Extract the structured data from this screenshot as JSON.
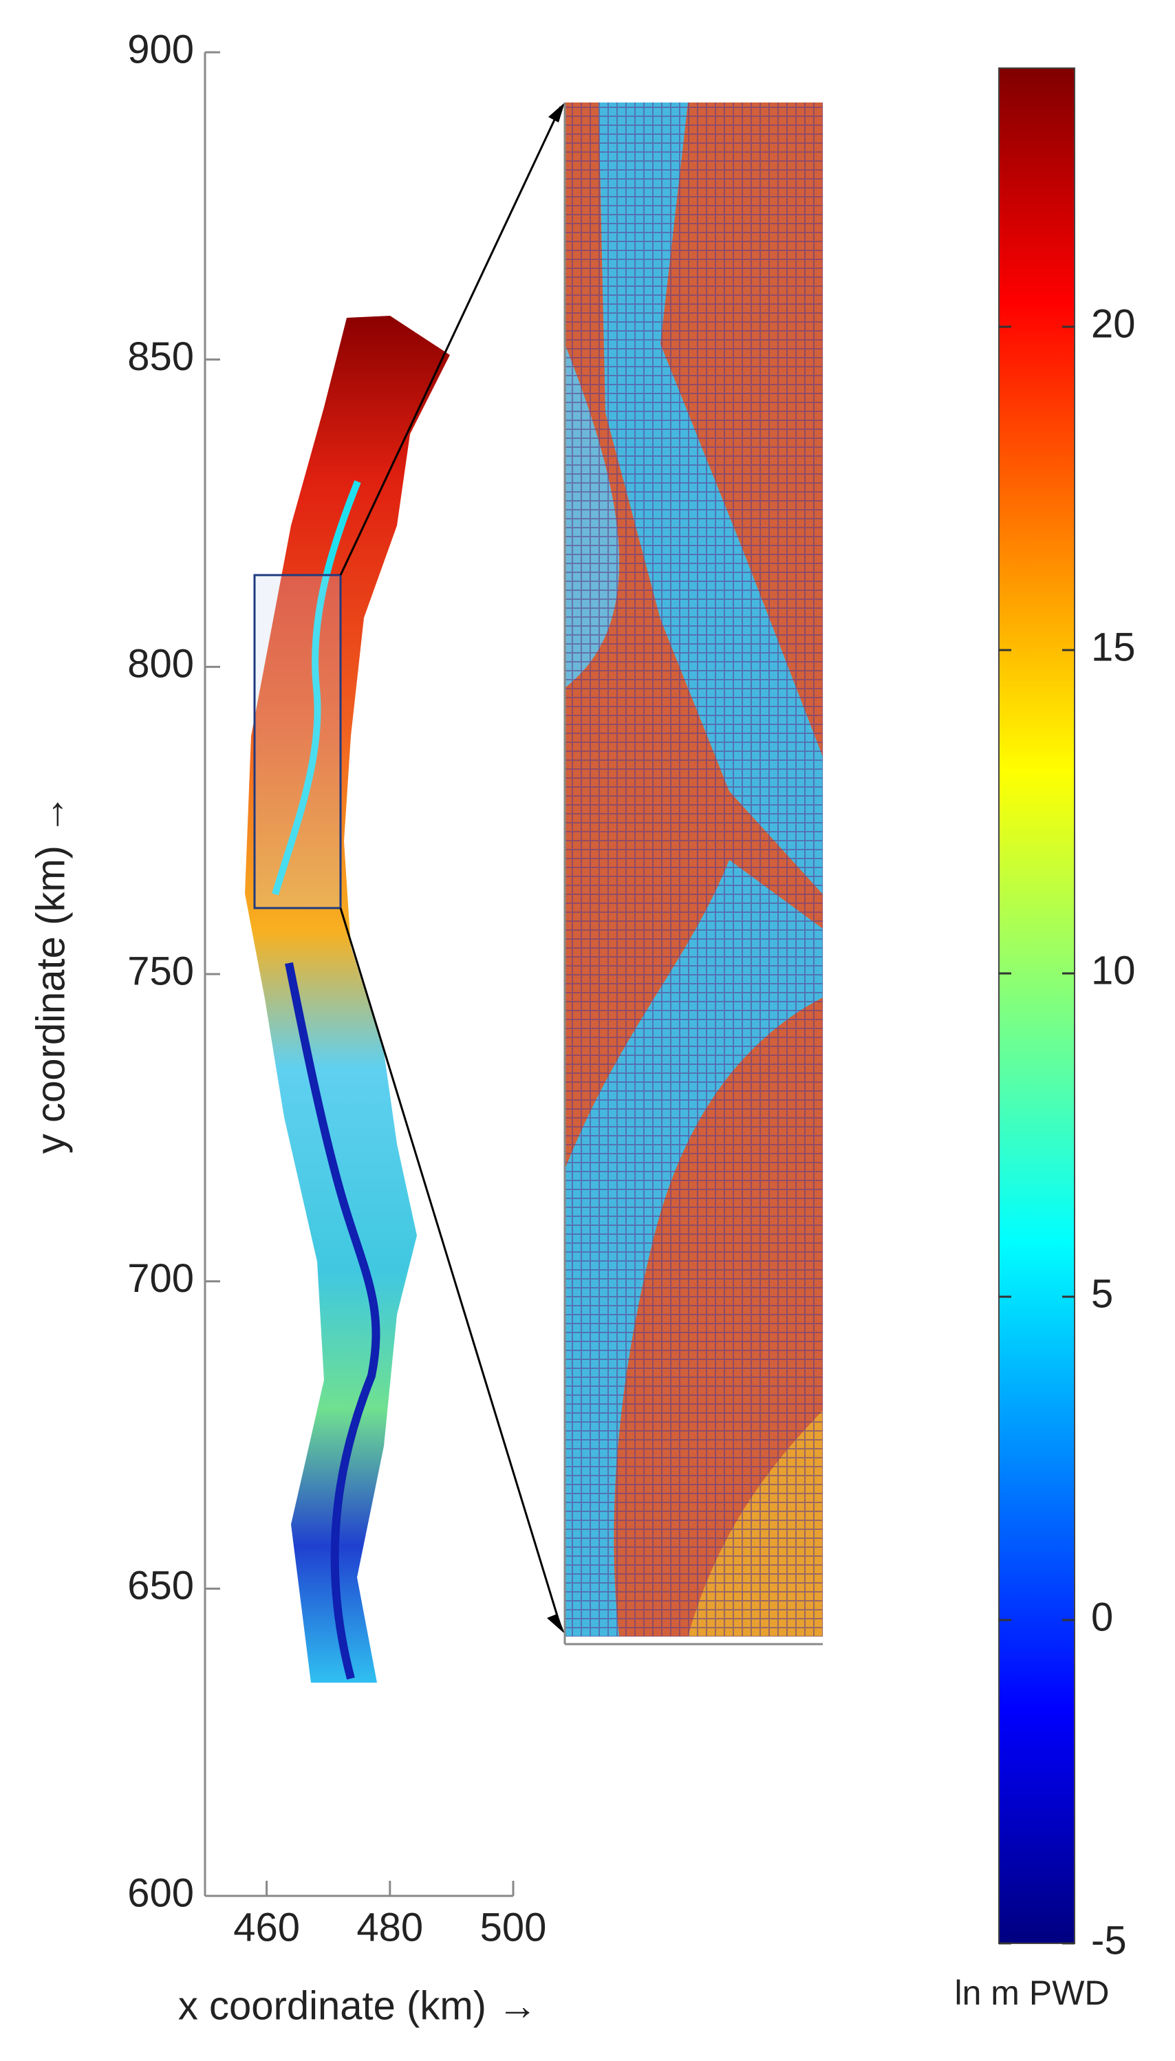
{
  "chart_data": {
    "type": "map",
    "xlabel": "x coordinate (km) →",
    "ylabel": "y coordinate (km) →",
    "xlim": [
      450,
      500
    ],
    "xticks": [
      460,
      480,
      500
    ],
    "ylim": [
      600,
      900
    ],
    "yticks": [
      600,
      650,
      700,
      750,
      800,
      850,
      900
    ],
    "colorbar": {
      "lim": [
        -5,
        24
      ],
      "ticks": [
        -5,
        0,
        5,
        10,
        15,
        20
      ],
      "label": "ln m PWD",
      "colormap": "jet"
    }
  }
}
